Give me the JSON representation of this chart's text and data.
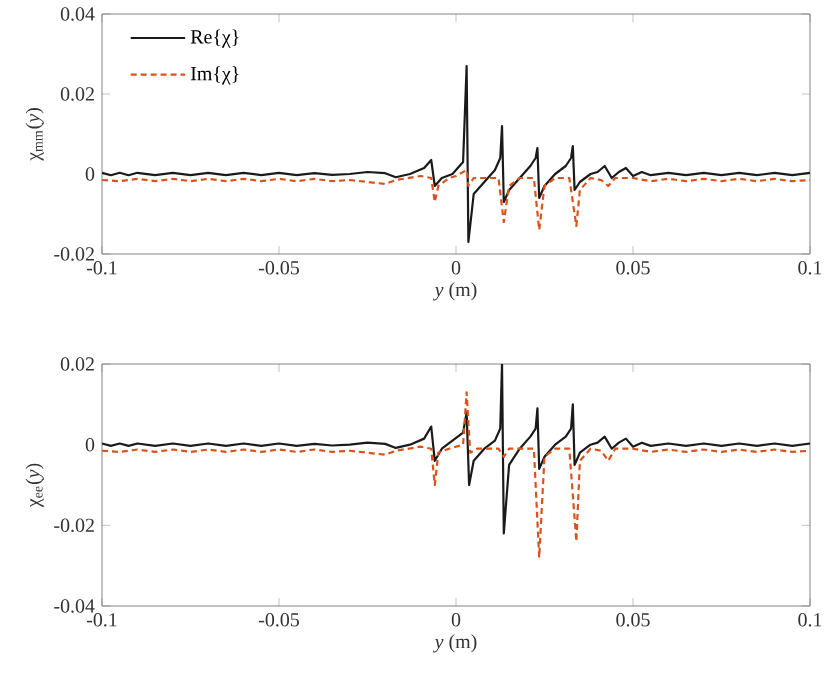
{
  "chart_data": [
    {
      "type": "line",
      "xlabel": "*y* (m)",
      "ylabel": "χ$_{mm}$(*y*)",
      "xlim": [
        -0.1,
        0.1
      ],
      "ylim": [
        -0.02,
        0.04
      ],
      "xticks": [
        -0.1,
        -0.05,
        0,
        0.05,
        0.1
      ],
      "yticks": [
        -0.02,
        0,
        0.02,
        0.04
      ],
      "legend": "top left",
      "marker": "none",
      "series": [
        {
          "name": "Re{χ}",
          "color": "#1a1a1a",
          "line_style": "solid",
          "x": [
            -0.1,
            -0.0975,
            -0.095,
            -0.0925,
            -0.09,
            -0.085,
            -0.08,
            -0.075,
            -0.07,
            -0.065,
            -0.06,
            -0.055,
            -0.05,
            -0.045,
            -0.04,
            -0.035,
            -0.03,
            -0.025,
            -0.02,
            -0.017,
            -0.013,
            -0.009,
            -0.007,
            -0.006,
            -0.004,
            -0.001,
            0.002,
            0.003,
            0.0035,
            0.005,
            0.008,
            0.011,
            0.0125,
            0.013,
            0.0135,
            0.015,
            0.018,
            0.021,
            0.0225,
            0.023,
            0.0235,
            0.025,
            0.028,
            0.031,
            0.0325,
            0.033,
            0.0335,
            0.035,
            0.038,
            0.04,
            0.042,
            0.044,
            0.046,
            0.048,
            0.05,
            0.0525,
            0.055,
            0.06,
            0.065,
            0.07,
            0.075,
            0.08,
            0.085,
            0.09,
            0.095,
            0.1
          ],
          "values": [
            0.0003,
            -0.0003,
            0.0003,
            -0.0003,
            0.0003,
            -0.0003,
            0.0003,
            -0.0003,
            0.0003,
            -0.0003,
            0.0003,
            -0.0003,
            0.0003,
            -0.0003,
            0.0002,
            -0.0002,
            0,
            0.0005,
            0.0002,
            -0.0008,
            0,
            0.0015,
            0.0035,
            -0.003,
            -0.001,
            0,
            0.003,
            0.027,
            -0.017,
            -0.005,
            -0.002,
            0.001,
            0.004,
            0.012,
            -0.007,
            -0.004,
            -0.001,
            0.002,
            0.004,
            0.0065,
            -0.006,
            -0.003,
            0,
            0.002,
            0.004,
            0.007,
            -0.004,
            -0.002,
            0,
            0.0005,
            0.002,
            -0.001,
            0.0005,
            0.0015,
            -0.0005,
            0.0005,
            -0.0003,
            0.0003,
            -0.0003,
            0.0003,
            -0.0003,
            0.0003,
            -0.0003,
            0.0003,
            -0.0003,
            0.0003
          ]
        },
        {
          "name": "Im{χ}",
          "color": "#d95319",
          "line_style": "dashed",
          "x": [
            -0.1,
            -0.095,
            -0.09,
            -0.085,
            -0.08,
            -0.075,
            -0.07,
            -0.065,
            -0.06,
            -0.055,
            -0.05,
            -0.045,
            -0.04,
            -0.035,
            -0.03,
            -0.025,
            -0.02,
            -0.017,
            -0.01,
            -0.007,
            -0.006,
            -0.005,
            -0.002,
            0,
            0.003,
            0.0035,
            0.005,
            0.012,
            0.0135,
            0.015,
            0.018,
            0.022,
            0.0235,
            0.025,
            0.028,
            0.032,
            0.034,
            0.035,
            0.038,
            0.041,
            0.043,
            0.045,
            0.05,
            0.055,
            0.06,
            0.065,
            0.07,
            0.075,
            0.08,
            0.085,
            0.09,
            0.095,
            0.1
          ],
          "values": [
            -0.0015,
            -0.0018,
            -0.0012,
            -0.0018,
            -0.0012,
            -0.0018,
            -0.0012,
            -0.0018,
            -0.0012,
            -0.0018,
            -0.0012,
            -0.0018,
            -0.0012,
            -0.0018,
            -0.0015,
            -0.002,
            -0.0025,
            -0.0015,
            -0.0005,
            -0.001,
            -0.007,
            -0.003,
            -0.001,
            -0.0005,
            0.001,
            -0.003,
            -0.001,
            -0.001,
            -0.012,
            -0.003,
            -0.001,
            -0.001,
            -0.014,
            -0.003,
            -0.001,
            -0.001,
            -0.013,
            -0.004,
            -0.001,
            -0.0015,
            -0.003,
            -0.001,
            -0.001,
            -0.0018,
            -0.0012,
            -0.0018,
            -0.0012,
            -0.0018,
            -0.0012,
            -0.0018,
            -0.0012,
            -0.0018,
            -0.0015
          ]
        }
      ]
    },
    {
      "type": "line",
      "xlabel": "*y* (m)",
      "ylabel": "χ$_{ee}$(*y*)",
      "xlim": [
        -0.1,
        0.1
      ],
      "ylim": [
        -0.04,
        0.02
      ],
      "xticks": [
        -0.1,
        -0.05,
        0,
        0.05,
        0.1
      ],
      "yticks": [
        -0.04,
        -0.02,
        0,
        0.02
      ],
      "marker": "none",
      "series": [
        {
          "color": "#1a1a1a",
          "line_style": "solid",
          "x": [
            -0.1,
            -0.0975,
            -0.095,
            -0.0925,
            -0.09,
            -0.085,
            -0.08,
            -0.075,
            -0.07,
            -0.065,
            -0.06,
            -0.055,
            -0.05,
            -0.045,
            -0.04,
            -0.035,
            -0.03,
            -0.025,
            -0.02,
            -0.017,
            -0.013,
            -0.009,
            -0.007,
            -0.006,
            -0.004,
            -0.001,
            0.002,
            0.003,
            0.0037,
            0.005,
            0.008,
            0.011,
            0.0125,
            0.013,
            0.0135,
            0.015,
            0.018,
            0.021,
            0.0225,
            0.023,
            0.0235,
            0.025,
            0.028,
            0.031,
            0.0325,
            0.033,
            0.0335,
            0.035,
            0.038,
            0.04,
            0.042,
            0.044,
            0.046,
            0.048,
            0.05,
            0.0525,
            0.055,
            0.06,
            0.065,
            0.07,
            0.075,
            0.08,
            0.085,
            0.09,
            0.095,
            0.1
          ],
          "values": [
            0.0003,
            -0.0003,
            0.0003,
            -0.0003,
            0.0003,
            -0.0003,
            0.0003,
            -0.0003,
            0.0003,
            -0.0003,
            0.0003,
            -0.0003,
            0.0003,
            -0.0003,
            0.0002,
            -0.0002,
            0,
            0.0005,
            0.0002,
            -0.0008,
            0,
            0.0015,
            0.0045,
            -0.004,
            -0.001,
            0.001,
            0.003,
            0.008,
            -0.01,
            -0.004,
            -0.001,
            0.001,
            0.004,
            0.02,
            -0.022,
            -0.005,
            -0.001,
            0.002,
            0.004,
            0.009,
            -0.006,
            -0.003,
            0,
            0.002,
            0.004,
            0.01,
            -0.005,
            -0.002,
            0,
            0.0005,
            0.002,
            -0.001,
            0.0005,
            0.0015,
            -0.0005,
            0.0005,
            -0.0003,
            0.0003,
            -0.0003,
            0.0003,
            -0.0003,
            0.0003,
            -0.0003,
            0.0003,
            -0.0003,
            0.0003
          ]
        },
        {
          "color": "#d95319",
          "line_style": "dashed",
          "x": [
            -0.1,
            -0.095,
            -0.09,
            -0.085,
            -0.08,
            -0.075,
            -0.07,
            -0.065,
            -0.06,
            -0.055,
            -0.05,
            -0.045,
            -0.04,
            -0.035,
            -0.03,
            -0.025,
            -0.02,
            -0.017,
            -0.01,
            -0.007,
            -0.006,
            -0.005,
            -0.002,
            0.002,
            0.003,
            0.004,
            0.006,
            0.012,
            0.0135,
            0.015,
            0.018,
            0.022,
            0.0235,
            0.025,
            0.028,
            0.032,
            0.034,
            0.035,
            0.038,
            0.041,
            0.043,
            0.045,
            0.05,
            0.055,
            0.06,
            0.065,
            0.07,
            0.075,
            0.08,
            0.085,
            0.09,
            0.095,
            0.1
          ],
          "values": [
            -0.0015,
            -0.0018,
            -0.0012,
            -0.0018,
            -0.0012,
            -0.0018,
            -0.0012,
            -0.0018,
            -0.0012,
            -0.0018,
            -0.0012,
            -0.0018,
            -0.0012,
            -0.0018,
            -0.0015,
            -0.002,
            -0.0025,
            -0.0015,
            -0.0005,
            -0.001,
            -0.01,
            -0.002,
            -0.001,
            0,
            0.013,
            -0.002,
            -0.001,
            -0.001,
            -0.003,
            -0.001,
            -0.001,
            -0.001,
            -0.028,
            -0.003,
            -0.001,
            -0.001,
            -0.024,
            -0.004,
            -0.001,
            -0.0015,
            -0.004,
            -0.001,
            -0.001,
            -0.0018,
            -0.0012,
            -0.0018,
            -0.0012,
            -0.0018,
            -0.0012,
            -0.0018,
            -0.0012,
            -0.0018,
            -0.0015
          ]
        }
      ]
    }
  ]
}
